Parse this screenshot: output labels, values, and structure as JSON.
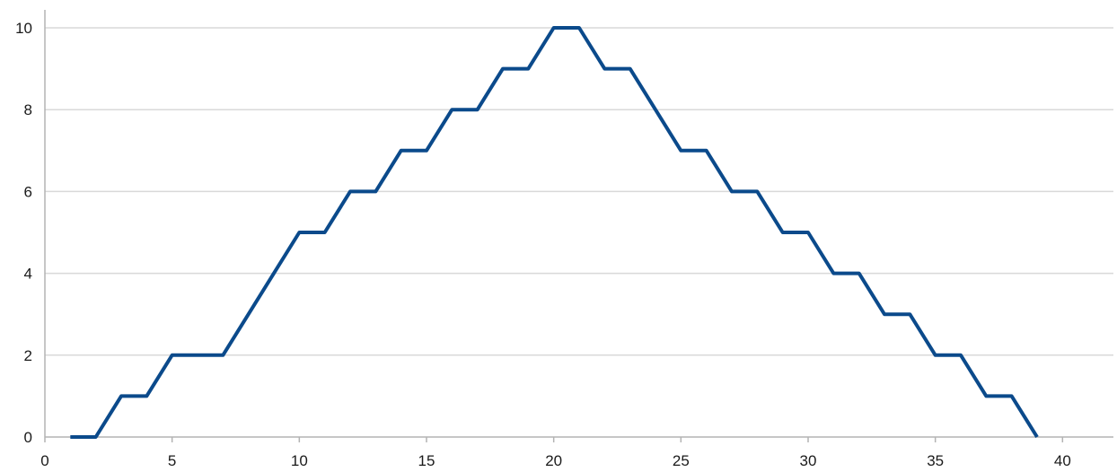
{
  "chart_data": {
    "type": "line",
    "title": "",
    "xlabel": "",
    "ylabel": "",
    "xlim": [
      0,
      42
    ],
    "ylim": [
      0,
      10
    ],
    "x_ticks": [
      "0",
      "5",
      "10",
      "15",
      "20",
      "25",
      "30",
      "35",
      "40"
    ],
    "y_ticks": [
      "0",
      "2",
      "4",
      "6",
      "8",
      "10"
    ],
    "grid": "horizontal",
    "legend": "none",
    "series": [
      {
        "color": "#0b4a8b",
        "x": [
          1,
          2,
          3,
          4,
          5,
          6,
          7,
          8,
          9,
          10,
          11,
          12,
          13,
          14,
          15,
          16,
          17,
          18,
          19,
          20,
          21,
          22,
          23,
          24,
          25,
          26,
          27,
          28,
          29,
          30,
          31,
          32,
          33,
          34,
          35,
          36,
          37,
          38,
          39
        ],
        "y": [
          0,
          0,
          1,
          1,
          2,
          2,
          2,
          3,
          4,
          5,
          5,
          6,
          6,
          7,
          7,
          8,
          8,
          9,
          9,
          10,
          10,
          9,
          9,
          8,
          7,
          7,
          6,
          6,
          5,
          5,
          4,
          4,
          3,
          3,
          2,
          2,
          1,
          1,
          0
        ]
      }
    ]
  }
}
